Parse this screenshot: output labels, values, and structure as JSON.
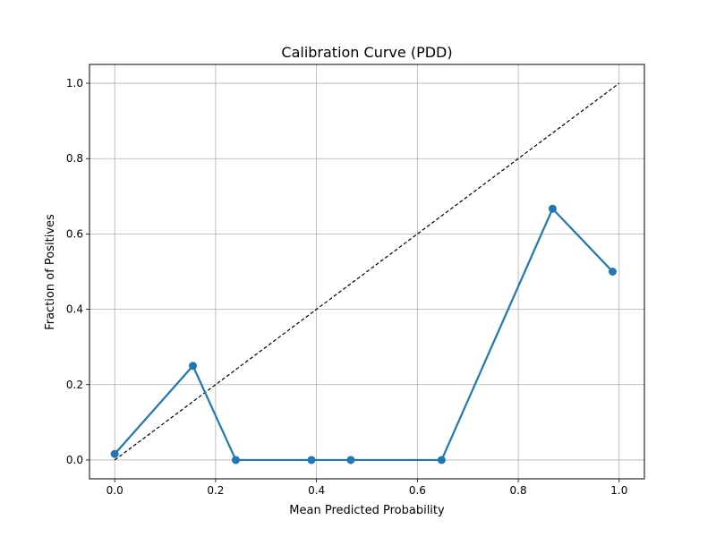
{
  "chart_data": {
    "type": "line",
    "title": "Calibration Curve (PDD)",
    "xlabel": "Mean Predicted Probability",
    "ylabel": "Fraction of Positives",
    "xlim": [
      -0.05,
      1.05
    ],
    "ylim": [
      -0.05,
      1.05
    ],
    "xticks": [
      0.0,
      0.2,
      0.4,
      0.6,
      0.8,
      1.0
    ],
    "xtick_labels": [
      "0.0",
      "0.2",
      "0.4",
      "0.6",
      "0.8",
      "1.0"
    ],
    "yticks": [
      0.0,
      0.2,
      0.4,
      0.6,
      0.8,
      1.0
    ],
    "ytick_labels": [
      "0.0",
      "0.2",
      "0.4",
      "0.6",
      "0.8",
      "1.0"
    ],
    "grid": true,
    "series": [
      {
        "color": "#1f77b4",
        "marker": "circle",
        "x": [
          0.0,
          0.155,
          0.24,
          0.39,
          0.468,
          0.648,
          0.868,
          0.987
        ],
        "y": [
          0.016,
          0.25,
          0.0,
          0.0,
          0.0,
          0.0,
          0.667,
          0.5
        ]
      }
    ],
    "reference_line": {
      "style": "dashed",
      "color": "#000000",
      "x": [
        0.0,
        1.0
      ],
      "y": [
        0.0,
        1.0
      ]
    }
  }
}
